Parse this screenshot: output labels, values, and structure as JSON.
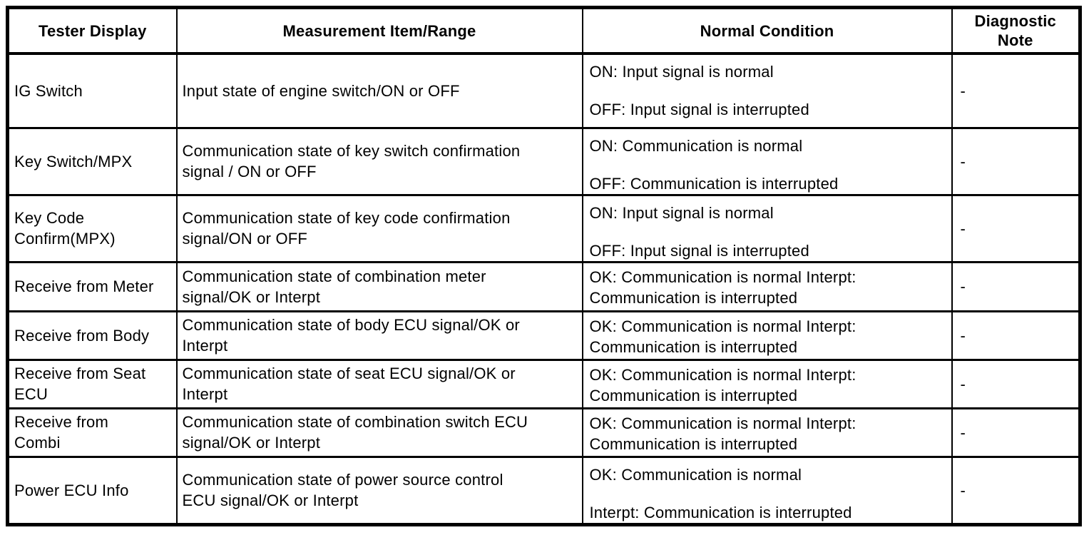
{
  "colors": {
    "background": "#ffffff",
    "border": "#000000",
    "text": "#000000"
  },
  "table": {
    "headers": [
      {
        "lines": [
          "Tester Display"
        ]
      },
      {
        "lines": [
          "Measurement Item/Range"
        ]
      },
      {
        "lines": [
          "Normal Condition"
        ]
      },
      {
        "lines": [
          "Diagnostic",
          "Note"
        ]
      }
    ],
    "rows": [
      {
        "tester_display": [
          "IG Switch"
        ],
        "measurement_item_range": [
          "Input state of engine switch/ON or OFF"
        ],
        "normal_condition": [
          "ON: Input signal is normal",
          "OFF: Input signal is interrupted"
        ],
        "diagnostic_note": "-"
      },
      {
        "tester_display": [
          "Key Switch/MPX"
        ],
        "measurement_item_range": [
          "Communication state of key switch confirmation",
          "signal / ON or OFF"
        ],
        "normal_condition": [
          "ON: Communication is normal",
          "OFF: Communication is interrupted"
        ],
        "diagnostic_note": "-"
      },
      {
        "tester_display": [
          "Key Code",
          "Confirm(MPX)"
        ],
        "measurement_item_range": [
          "Communication state of key code confirmation",
          "signal/ON or OFF"
        ],
        "normal_condition": [
          "ON: Input signal is normal",
          "OFF: Input signal is interrupted"
        ],
        "diagnostic_note": "-"
      },
      {
        "tester_display": [
          "Receive from Meter"
        ],
        "measurement_item_range": [
          "Communication state of combination meter",
          "signal/OK or Interpt"
        ],
        "normal_condition": [
          "OK: Communication is normal Interpt:",
          "Communication is interrupted"
        ],
        "diagnostic_note": "-"
      },
      {
        "tester_display": [
          "Receive from Body"
        ],
        "measurement_item_range": [
          "Communication state of body ECU signal/OK or",
          "Interpt"
        ],
        "normal_condition": [
          "OK: Communication is normal Interpt:",
          "Communication is interrupted"
        ],
        "diagnostic_note": "-"
      },
      {
        "tester_display": [
          "Receive from Seat",
          "ECU"
        ],
        "measurement_item_range": [
          "Communication state of seat ECU signal/OK or",
          "Interpt"
        ],
        "normal_condition": [
          "OK: Communication is normal Interpt:",
          "Communication is interrupted"
        ],
        "diagnostic_note": "-"
      },
      {
        "tester_display": [
          "Receive from",
          "Combi"
        ],
        "measurement_item_range": [
          "Communication state of combination switch ECU",
          "signal/OK or Interpt"
        ],
        "normal_condition": [
          "OK: Communication is normal Interpt:",
          "Communication is interrupted"
        ],
        "diagnostic_note": "-"
      },
      {
        "tester_display": [
          "Power ECU Info"
        ],
        "measurement_item_range": [
          "Communication state of power source control",
          "ECU signal/OK or Interpt"
        ],
        "normal_condition": [
          "OK: Communication is normal",
          "Interpt: Communication is interrupted"
        ],
        "diagnostic_note": "-"
      }
    ]
  }
}
